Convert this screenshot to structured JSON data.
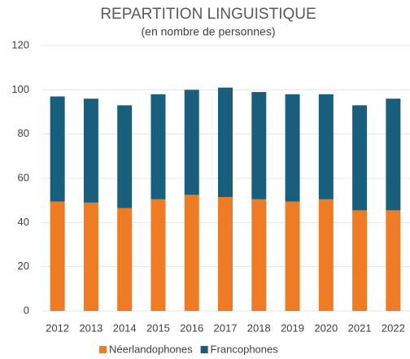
{
  "chart_data": {
    "type": "stacked_bar",
    "title": "REPARTITION LINGUISTIQUE",
    "subtitle": "(en nombre de personnes)",
    "categories": [
      "2012",
      "2013",
      "2014",
      "2015",
      "2016",
      "2017",
      "2018",
      "2019",
      "2020",
      "2021",
      "2022"
    ],
    "series": [
      {
        "name": "Néerlandophones",
        "color": "#f07b25",
        "values": [
          49.5,
          49,
          46.5,
          50.5,
          52.5,
          51.5,
          50.5,
          49.5,
          50.5,
          45.5,
          45.5
        ]
      },
      {
        "name": "Francophones",
        "color": "#1a5e7e",
        "values": [
          47.5,
          47,
          46.5,
          47.5,
          47.5,
          49.5,
          48.5,
          48.5,
          47.5,
          47.5,
          50.5
        ]
      }
    ],
    "ylim": [
      0,
      120
    ],
    "yticks": [
      0,
      20,
      40,
      60,
      80,
      100,
      120
    ],
    "grid": true,
    "legend": "bottom"
  }
}
